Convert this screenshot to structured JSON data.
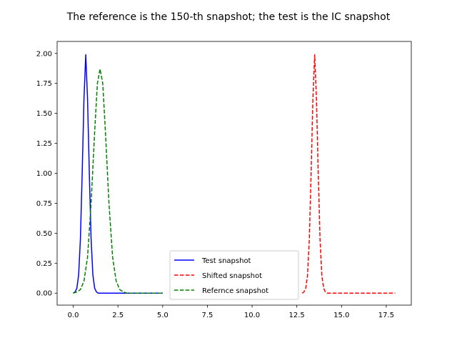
{
  "chart_data": {
    "type": "line",
    "title": "The reference is the 150-th snapshot; the test is the IC snapshot",
    "xlabel": "",
    "ylabel": "",
    "xlim": [
      -0.9,
      18.9
    ],
    "ylim": [
      -0.1,
      2.1
    ],
    "x_ticks": [
      0.0,
      2.5,
      5.0,
      7.5,
      10.0,
      12.5,
      15.0,
      17.5
    ],
    "x_tick_labels": [
      "0.0",
      "2.5",
      "5.0",
      "7.5",
      "10.0",
      "12.5",
      "15.0",
      "17.5"
    ],
    "y_ticks": [
      0.0,
      0.25,
      0.5,
      0.75,
      1.0,
      1.25,
      1.5,
      1.75,
      2.0
    ],
    "y_tick_labels": [
      "0.00",
      "0.25",
      "0.50",
      "0.75",
      "1.00",
      "1.25",
      "1.50",
      "1.75",
      "2.00"
    ],
    "grid": false,
    "legend_position": "lower-center",
    "series": [
      {
        "name": "Test snapshot",
        "color": "#0000ff",
        "style": "solid",
        "x": [
          0.0,
          0.1,
          0.2,
          0.3,
          0.4,
          0.5,
          0.6,
          0.7,
          0.8,
          0.9,
          1.0,
          1.1,
          1.2,
          1.3,
          1.4,
          1.5,
          2.0,
          3.0,
          4.0,
          5.0
        ],
        "y": [
          0.0,
          0.01,
          0.04,
          0.15,
          0.45,
          1.0,
          1.62,
          1.99,
          1.62,
          1.0,
          0.45,
          0.15,
          0.04,
          0.01,
          0.0,
          0.0,
          0.0,
          0.0,
          0.0,
          0.0
        ]
      },
      {
        "name": "Shifted snapshot",
        "color": "#ff0000",
        "style": "dashed",
        "x": [
          12.8,
          12.9,
          13.0,
          13.1,
          13.2,
          13.3,
          13.4,
          13.5,
          13.6,
          13.7,
          13.8,
          13.9,
          14.0,
          14.1,
          14.2,
          14.3,
          15.0,
          16.0,
          17.0,
          18.0
        ],
        "y": [
          0.0,
          0.01,
          0.04,
          0.15,
          0.45,
          1.0,
          1.62,
          1.99,
          1.62,
          1.0,
          0.45,
          0.15,
          0.04,
          0.01,
          0.0,
          0.0,
          0.0,
          0.0,
          0.0,
          0.0
        ]
      },
      {
        "name": "Refernce snapshot",
        "color": "#008000",
        "style": "dashed",
        "x": [
          0.0,
          0.2,
          0.4,
          0.6,
          0.8,
          1.0,
          1.2,
          1.35,
          1.5,
          1.65,
          1.8,
          2.0,
          2.2,
          2.4,
          2.6,
          2.8,
          3.0,
          3.5,
          4.0,
          5.0
        ],
        "y": [
          0.0,
          0.01,
          0.03,
          0.1,
          0.3,
          0.75,
          1.35,
          1.75,
          1.87,
          1.75,
          1.35,
          0.75,
          0.3,
          0.1,
          0.03,
          0.01,
          0.0,
          0.0,
          0.0,
          0.0
        ]
      }
    ]
  }
}
